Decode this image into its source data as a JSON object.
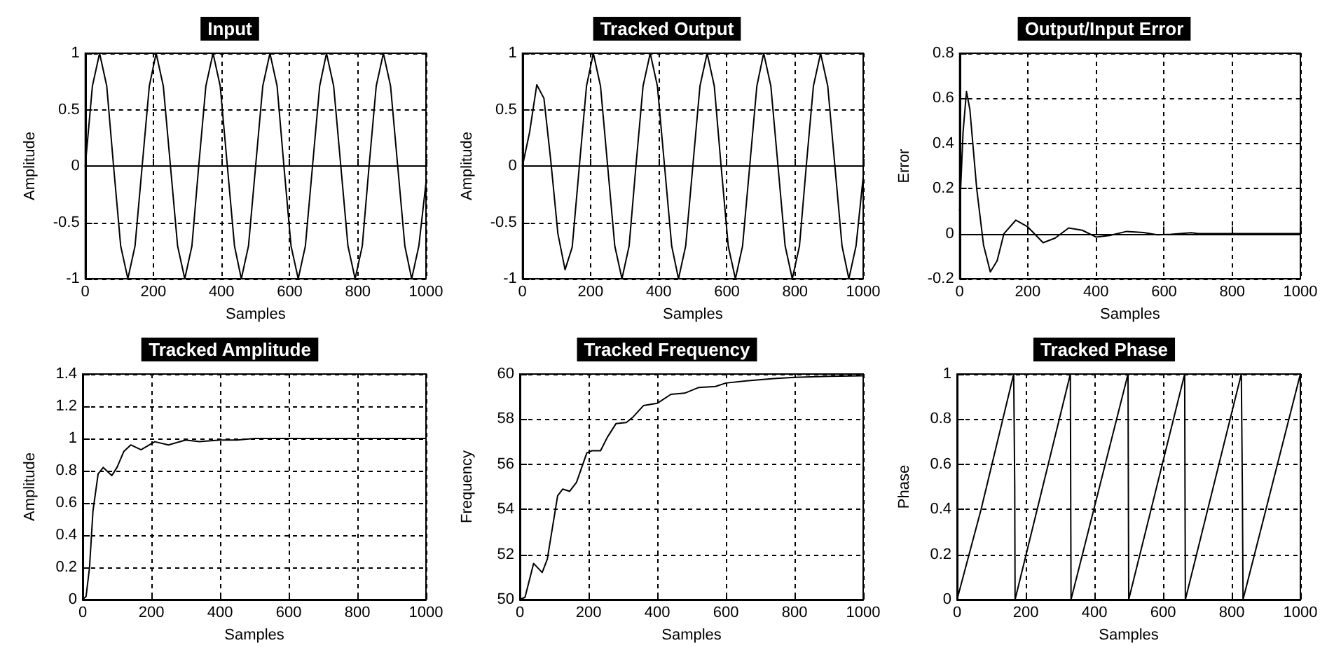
{
  "chart_data": [
    {
      "type": "line",
      "title": "Input",
      "xlabel": "Samples",
      "ylabel": "Amplitude",
      "color": "#000000",
      "marker": "none",
      "grid": true,
      "xlim": [
        0,
        1000
      ],
      "xticks": [
        0,
        200,
        400,
        600,
        800,
        1000
      ],
      "ylim": [
        -1,
        1
      ],
      "yticks": [
        -1,
        -0.5,
        0,
        0.5,
        1
      ],
      "x": [
        0,
        21,
        42,
        63,
        83,
        104,
        125,
        146,
        167,
        188,
        208,
        229,
        250,
        271,
        292,
        313,
        333,
        354,
        375,
        396,
        417,
        438,
        458,
        479,
        500,
        521,
        542,
        563,
        583,
        604,
        625,
        646,
        667,
        688,
        708,
        729,
        750,
        771,
        792,
        813,
        833,
        854,
        875,
        896,
        917,
        938,
        958,
        979,
        1000
      ],
      "values": [
        0,
        0.71,
        1,
        0.71,
        0,
        -0.71,
        -1,
        -0.71,
        0,
        0.71,
        1,
        0.71,
        0,
        -0.71,
        -1,
        -0.71,
        0,
        0.71,
        1,
        0.71,
        0,
        -0.71,
        -1,
        -0.71,
        0,
        0.71,
        1,
        0.71,
        0,
        -0.71,
        -1,
        -0.71,
        0,
        0.71,
        1,
        0.71,
        0,
        -0.71,
        -1,
        -0.71,
        0,
        0.71,
        1,
        0.71,
        0,
        -0.71,
        -1,
        -0.71,
        -0.15
      ]
    },
    {
      "type": "line",
      "title": "Tracked Output",
      "xlabel": "Samples",
      "ylabel": "Amplitude",
      "color": "#000000",
      "marker": "none",
      "grid": true,
      "xlim": [
        0,
        1000
      ],
      "xticks": [
        0,
        200,
        400,
        600,
        800,
        1000
      ],
      "ylim": [
        -1,
        1
      ],
      "yticks": [
        -1,
        -0.5,
        0,
        0.5,
        1
      ],
      "x": [
        0,
        21,
        42,
        63,
        83,
        104,
        125,
        146,
        167,
        188,
        208,
        229,
        250,
        271,
        292,
        313,
        333,
        354,
        375,
        396,
        417,
        438,
        458,
        479,
        500,
        521,
        542,
        563,
        583,
        604,
        625,
        646,
        667,
        688,
        708,
        729,
        750,
        771,
        792,
        813,
        833,
        854,
        875,
        896,
        917,
        938,
        958,
        979,
        1000
      ],
      "values": [
        0,
        0.3,
        0.72,
        0.6,
        0.05,
        -0.6,
        -0.92,
        -0.72,
        0,
        0.71,
        1,
        0.71,
        0,
        -0.71,
        -1,
        -0.71,
        0,
        0.71,
        1,
        0.71,
        0,
        -0.71,
        -1,
        -0.71,
        0,
        0.71,
        1,
        0.71,
        0,
        -0.71,
        -1,
        -0.71,
        0,
        0.71,
        1,
        0.71,
        0,
        -0.71,
        -1,
        -0.71,
        0,
        0.71,
        1,
        0.71,
        0,
        -0.71,
        -1,
        -0.71,
        -0.1
      ]
    },
    {
      "type": "line",
      "title": "Output/Input Error",
      "xlabel": "Samples",
      "ylabel": "Error",
      "color": "#000000",
      "marker": "none",
      "grid": true,
      "xlim": [
        0,
        1000
      ],
      "xticks": [
        0,
        200,
        400,
        600,
        800,
        1000
      ],
      "ylim": [
        -0.2,
        0.8
      ],
      "yticks": [
        -0.2,
        0,
        0.2,
        0.4,
        0.6,
        0.8
      ],
      "x": [
        0,
        10,
        20,
        30,
        50,
        70,
        90,
        110,
        130,
        165,
        200,
        245,
        280,
        320,
        360,
        400,
        440,
        490,
        540,
        580,
        620,
        680,
        700,
        1000
      ],
      "values": [
        0.1,
        0.45,
        0.63,
        0.55,
        0.2,
        -0.05,
        -0.17,
        -0.12,
        0,
        0.06,
        0.03,
        -0.04,
        -0.02,
        0.025,
        0.015,
        -0.015,
        -0.008,
        0.01,
        0.005,
        -0.005,
        -0.003,
        0.004,
        0,
        0
      ]
    },
    {
      "type": "line",
      "title": "Tracked Amplitude",
      "xlabel": "Samples",
      "ylabel": "Amplitude",
      "color": "#000000",
      "marker": "none",
      "grid": true,
      "xlim": [
        0,
        1000
      ],
      "xticks": [
        0,
        200,
        400,
        600,
        800,
        1000
      ],
      "ylim": [
        0,
        1.4
      ],
      "yticks": [
        0,
        0.2,
        0.4,
        0.6,
        0.8,
        1,
        1.2,
        1.4
      ],
      "x": [
        0,
        10,
        20,
        30,
        45,
        60,
        85,
        100,
        120,
        140,
        170,
        210,
        250,
        300,
        340,
        400,
        450,
        500,
        600,
        1000
      ],
      "values": [
        0,
        0.02,
        0.2,
        0.55,
        0.78,
        0.82,
        0.77,
        0.82,
        0.92,
        0.96,
        0.93,
        0.98,
        0.96,
        0.99,
        0.98,
        0.99,
        0.99,
        1,
        1,
        1
      ]
    },
    {
      "type": "line",
      "title": "Tracked Frequency",
      "xlabel": "Samples",
      "ylabel": "Frequency",
      "color": "#000000",
      "marker": "none",
      "grid": true,
      "xlim": [
        0,
        1000
      ],
      "xticks": [
        0,
        200,
        400,
        600,
        800,
        1000
      ],
      "ylim": [
        50,
        60
      ],
      "yticks": [
        50,
        52,
        54,
        56,
        58,
        60
      ],
      "x": [
        0,
        15,
        40,
        65,
        80,
        110,
        125,
        145,
        165,
        195,
        210,
        235,
        255,
        280,
        310,
        330,
        360,
        400,
        440,
        480,
        520,
        570,
        600,
        660,
        740,
        800,
        900,
        1000
      ],
      "values": [
        50,
        50.1,
        51.6,
        51.2,
        51.8,
        54.6,
        54.9,
        54.8,
        55.2,
        56.5,
        56.6,
        56.6,
        57.2,
        57.8,
        57.85,
        58.1,
        58.6,
        58.7,
        59.1,
        59.15,
        59.4,
        59.45,
        59.6,
        59.7,
        59.8,
        59.85,
        59.9,
        59.92
      ]
    },
    {
      "type": "line",
      "title": "Tracked Phase",
      "xlabel": "Samples",
      "ylabel": "Phase",
      "color": "#000000",
      "marker": "none",
      "grid": true,
      "xlim": [
        0,
        1000
      ],
      "xticks": [
        0,
        200,
        400,
        600,
        800,
        1000
      ],
      "ylim": [
        0,
        1
      ],
      "yticks": [
        0,
        0.2,
        0.4,
        0.6,
        0.8,
        1
      ],
      "x": [
        0,
        70,
        165,
        166,
        168,
        169,
        330,
        332,
        498,
        500,
        663,
        665,
        828,
        831,
        833,
        1000
      ],
      "values": [
        0,
        0.4,
        1,
        1,
        0.5,
        0,
        1,
        0,
        1,
        0,
        1,
        0,
        1,
        0.5,
        0,
        1
      ]
    }
  ]
}
